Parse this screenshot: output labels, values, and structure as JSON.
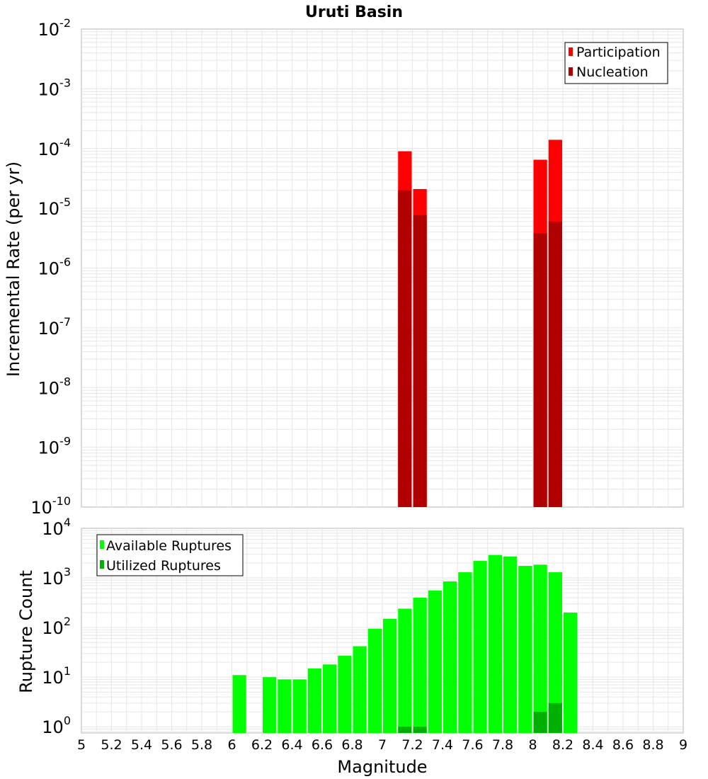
{
  "chart_data": [
    {
      "type": "bar",
      "title": "Uruti Basin",
      "xlabel": "",
      "ylabel": "Incremental Rate (per yr)",
      "yscale": "log",
      "ylim": [
        1e-10,
        0.01
      ],
      "xlim": [
        5,
        9
      ],
      "y_ticks": [
        {
          "base": "10",
          "exp": "-2",
          "value": 0.01
        },
        {
          "base": "10",
          "exp": "-3",
          "value": 0.001
        },
        {
          "base": "10",
          "exp": "-4",
          "value": 0.0001
        },
        {
          "base": "10",
          "exp": "-5",
          "value": 1e-05
        },
        {
          "base": "10",
          "exp": "-6",
          "value": 1e-06
        },
        {
          "base": "10",
          "exp": "-7",
          "value": 1e-07
        },
        {
          "base": "10",
          "exp": "-8",
          "value": 1e-08
        },
        {
          "base": "10",
          "exp": "-9",
          "value": 1e-09
        },
        {
          "base": "10",
          "exp": "-10",
          "value": 1e-10
        }
      ],
      "legend_position": "top-right",
      "series": [
        {
          "name": "Participation",
          "color": "#ff0000",
          "points": [
            {
              "x": 7.15,
              "y": 9e-05
            },
            {
              "x": 7.25,
              "y": 2.1e-05
            },
            {
              "x": 8.05,
              "y": 6.5e-05
            },
            {
              "x": 8.15,
              "y": 0.00014
            }
          ]
        },
        {
          "name": "Nucleation",
          "color": "#b00000",
          "points": [
            {
              "x": 7.15,
              "y": 2e-05
            },
            {
              "x": 7.25,
              "y": 7.7e-06
            },
            {
              "x": 8.05,
              "y": 3.8e-06
            },
            {
              "x": 8.15,
              "y": 6e-06
            }
          ]
        }
      ]
    },
    {
      "type": "bar",
      "title": "",
      "xlabel": "Magnitude",
      "ylabel": "Rupture Count",
      "yscale": "log",
      "ylim": [
        0.75,
        10000
      ],
      "xlim": [
        5,
        9
      ],
      "y_ticks": [
        {
          "base": "10",
          "exp": "4",
          "value": 10000
        },
        {
          "base": "10",
          "exp": "3",
          "value": 1000
        },
        {
          "base": "10",
          "exp": "2",
          "value": 100
        },
        {
          "base": "10",
          "exp": "1",
          "value": 10
        },
        {
          "base": "10",
          "exp": "0",
          "value": 1
        }
      ],
      "x_ticks": [
        "5",
        "5.2",
        "5.4",
        "5.6",
        "5.8",
        "6",
        "6.2",
        "6.4",
        "6.6",
        "6.8",
        "7",
        "7.2",
        "7.4",
        "7.6",
        "7.8",
        "8",
        "8.2",
        "8.4",
        "8.6",
        "8.8",
        "9"
      ],
      "legend_position": "top-left",
      "series": [
        {
          "name": "Available Ruptures",
          "color": "#00ff00",
          "points": [
            {
              "x": 6.05,
              "y": 11
            },
            {
              "x": 6.25,
              "y": 10
            },
            {
              "x": 6.35,
              "y": 9
            },
            {
              "x": 6.45,
              "y": 9
            },
            {
              "x": 6.55,
              "y": 15
            },
            {
              "x": 6.65,
              "y": 18
            },
            {
              "x": 6.75,
              "y": 27
            },
            {
              "x": 6.85,
              "y": 42
            },
            {
              "x": 6.95,
              "y": 95
            },
            {
              "x": 7.05,
              "y": 150
            },
            {
              "x": 7.15,
              "y": 240
            },
            {
              "x": 7.25,
              "y": 400
            },
            {
              "x": 7.35,
              "y": 560
            },
            {
              "x": 7.45,
              "y": 850
            },
            {
              "x": 7.55,
              "y": 1300
            },
            {
              "x": 7.65,
              "y": 2200
            },
            {
              "x": 7.75,
              "y": 2900
            },
            {
              "x": 7.85,
              "y": 2700
            },
            {
              "x": 7.95,
              "y": 1750
            },
            {
              "x": 8.05,
              "y": 1850
            },
            {
              "x": 8.15,
              "y": 1300
            },
            {
              "x": 8.25,
              "y": 200
            }
          ]
        },
        {
          "name": "Utilized Ruptures",
          "color": "#00b000",
          "points": [
            {
              "x": 7.15,
              "y": 1
            },
            {
              "x": 7.25,
              "y": 1
            },
            {
              "x": 8.05,
              "y": 2
            },
            {
              "x": 8.15,
              "y": 3
            }
          ]
        }
      ]
    }
  ]
}
